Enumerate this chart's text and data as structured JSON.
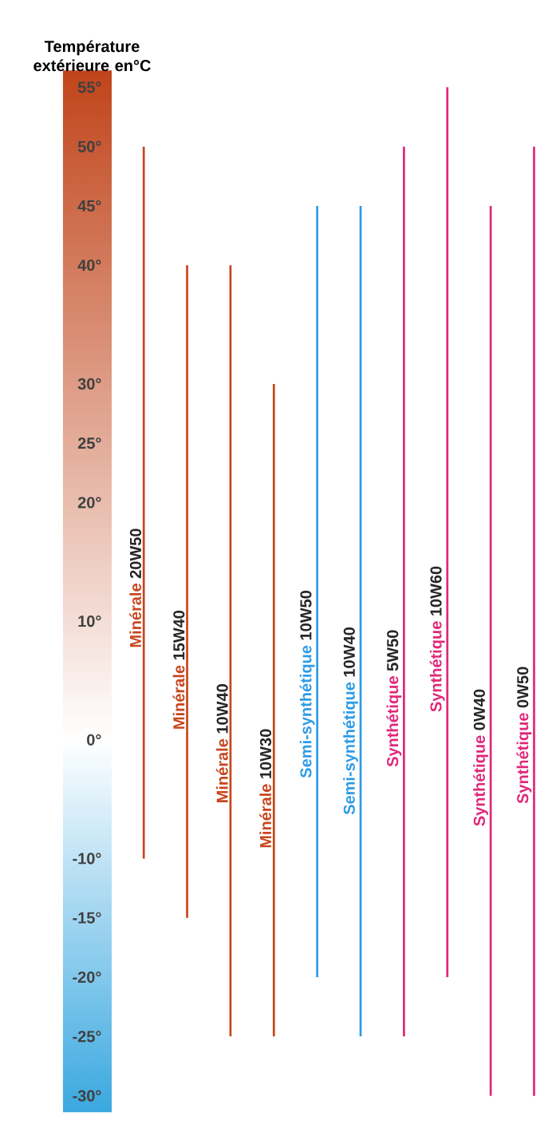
{
  "chart_data": {
    "type": "bar",
    "ylabel": "Température extérieure en°C",
    "categories": [
      "20W50",
      "15W40",
      "10W40",
      "10W30",
      "10W50",
      "10W40",
      "5W50",
      "10W60",
      "0W40",
      "0W50"
    ],
    "series": [
      {
        "name": "Minérale",
        "color": "#c8461e",
        "values": [
          60,
          55,
          65,
          55,
          null,
          null,
          null,
          null,
          null,
          null
        ],
        "base": [
          -10,
          -15,
          -25,
          -25,
          null,
          null,
          null,
          null,
          null,
          null
        ]
      },
      {
        "name": "Semi-synthétique",
        "color": "#2d9be6",
        "values": [
          null,
          null,
          null,
          null,
          65,
          70,
          null,
          null,
          null,
          null
        ],
        "base": [
          null,
          null,
          null,
          null,
          -20,
          -25,
          null,
          null,
          null,
          null
        ]
      },
      {
        "name": "Synthétique",
        "color": "#e0287a",
        "values": [
          null,
          null,
          null,
          null,
          null,
          null,
          75,
          75,
          75,
          80
        ],
        "base": [
          null,
          null,
          null,
          null,
          null,
          null,
          -25,
          -20,
          -30,
          -30
        ]
      }
    ],
    "ylim": [
      -30,
      55
    ],
    "yticks": [
      {
        "value": 55,
        "label": "55°"
      },
      {
        "value": 50,
        "label": "50°"
      },
      {
        "value": 45,
        "label": "45°"
      },
      {
        "value": 40,
        "label": "40°"
      },
      {
        "value": 30,
        "label": "30°"
      },
      {
        "value": 25,
        "label": "25°"
      },
      {
        "value": 20,
        "label": "20°"
      },
      {
        "value": 10,
        "label": "10°"
      },
      {
        "value": 0,
        "label": "0°"
      },
      {
        "value": -10,
        "label": "-10°"
      },
      {
        "value": -15,
        "label": "-15°"
      },
      {
        "value": -20,
        "label": "-20°"
      },
      {
        "value": -25,
        "label": "-25°"
      },
      {
        "value": -30,
        "label": "-30°"
      }
    ],
    "grid": false
  }
}
